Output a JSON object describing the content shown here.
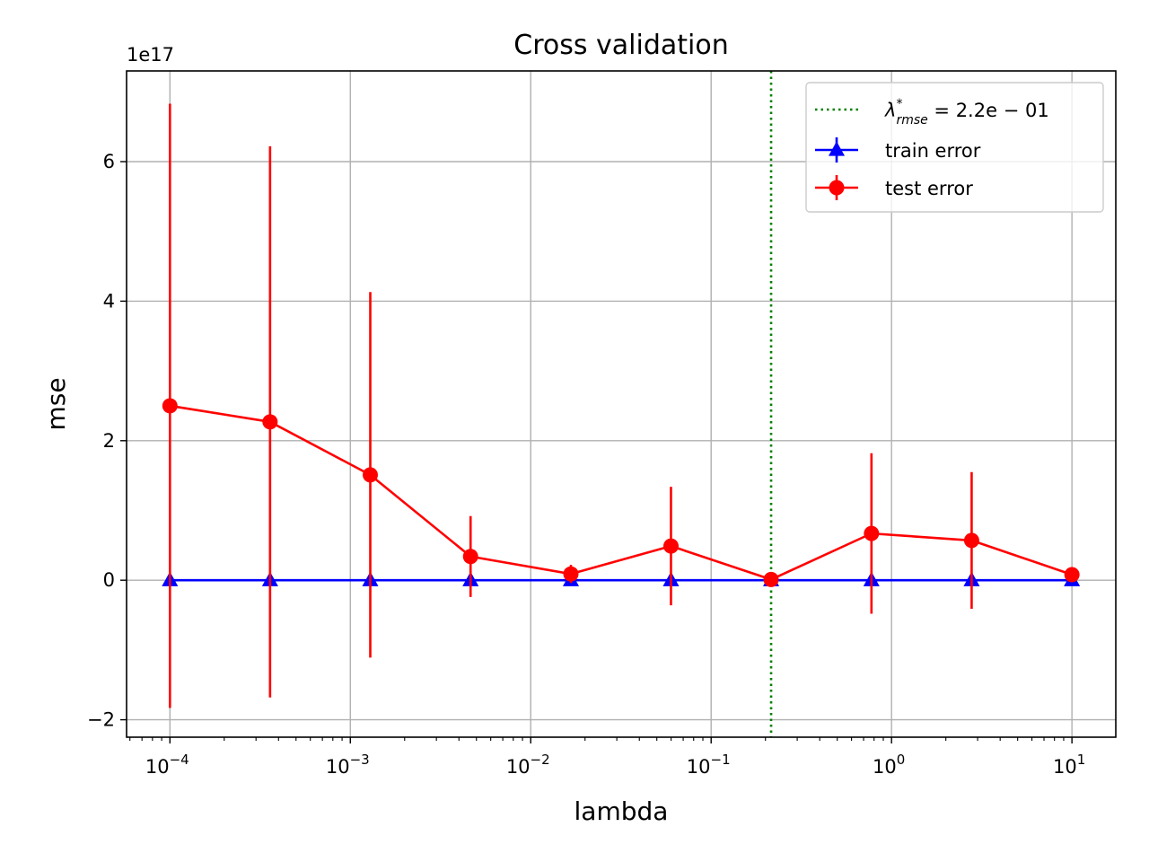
{
  "chart_data": {
    "type": "line",
    "title": "Cross validation",
    "xlabel": "lambda",
    "ylabel": "mse",
    "x_scale": "log",
    "xlim": [
      5.75e-05,
      17.5
    ],
    "ylim": [
      -2.25e+17,
      7.3e+17
    ],
    "y_offset_label": "1e17",
    "grid": true,
    "legend_position": "top-right",
    "x_ticks": [
      {
        "value": 0.0001,
        "base": "10",
        "exp": "−4"
      },
      {
        "value": 0.001,
        "base": "10",
        "exp": "−3"
      },
      {
        "value": 0.01,
        "base": "10",
        "exp": "−2"
      },
      {
        "value": 0.1,
        "base": "10",
        "exp": "−1"
      },
      {
        "value": 1,
        "base": "10",
        "exp": "0"
      },
      {
        "value": 10,
        "base": "10",
        "exp": "1"
      }
    ],
    "y_ticks": [
      {
        "value": -2e+17,
        "label": "−2"
      },
      {
        "value": 0,
        "label": "0"
      },
      {
        "value": 2e+17,
        "label": "2"
      },
      {
        "value": 4e+17,
        "label": "4"
      },
      {
        "value": 6e+17,
        "label": "6"
      }
    ],
    "x": [
      0.0001,
      0.000359,
      0.00129,
      0.00464,
      0.0167,
      0.0599,
      0.215,
      0.774,
      2.78,
      10.0
    ],
    "series": [
      {
        "name": "train error",
        "color": "#0000ff",
        "marker": "triangle",
        "values": [
          0,
          0,
          0,
          0,
          0,
          0,
          0,
          0,
          0,
          0
        ],
        "errors": [
          0,
          0,
          0,
          0,
          0,
          0,
          0,
          0,
          0,
          0
        ]
      },
      {
        "name": "test error",
        "color": "#ff0000",
        "marker": "circle",
        "values": [
          2.5e+17,
          2.27e+17,
          1.51e+17,
          3.4e+16,
          9000000000000000.0,
          4.9e+16,
          1000000000000000.0,
          6.7e+16,
          5.7e+16,
          8000000000000000.0
        ],
        "errors": [
          4.33e+17,
          3.95e+17,
          2.62e+17,
          5.8e+16,
          1.3e+16,
          8.5e+16,
          1000000000000000.0,
          1.15e+17,
          9.8e+16,
          7000000000000000.0
        ]
      }
    ],
    "vline": {
      "x": 0.215,
      "color": "#008000",
      "style": "dotted",
      "legend": {
        "symbol": "λ",
        "sup": "*",
        "sub": "rmse",
        "rest": " = 2.2e − 01"
      }
    }
  }
}
